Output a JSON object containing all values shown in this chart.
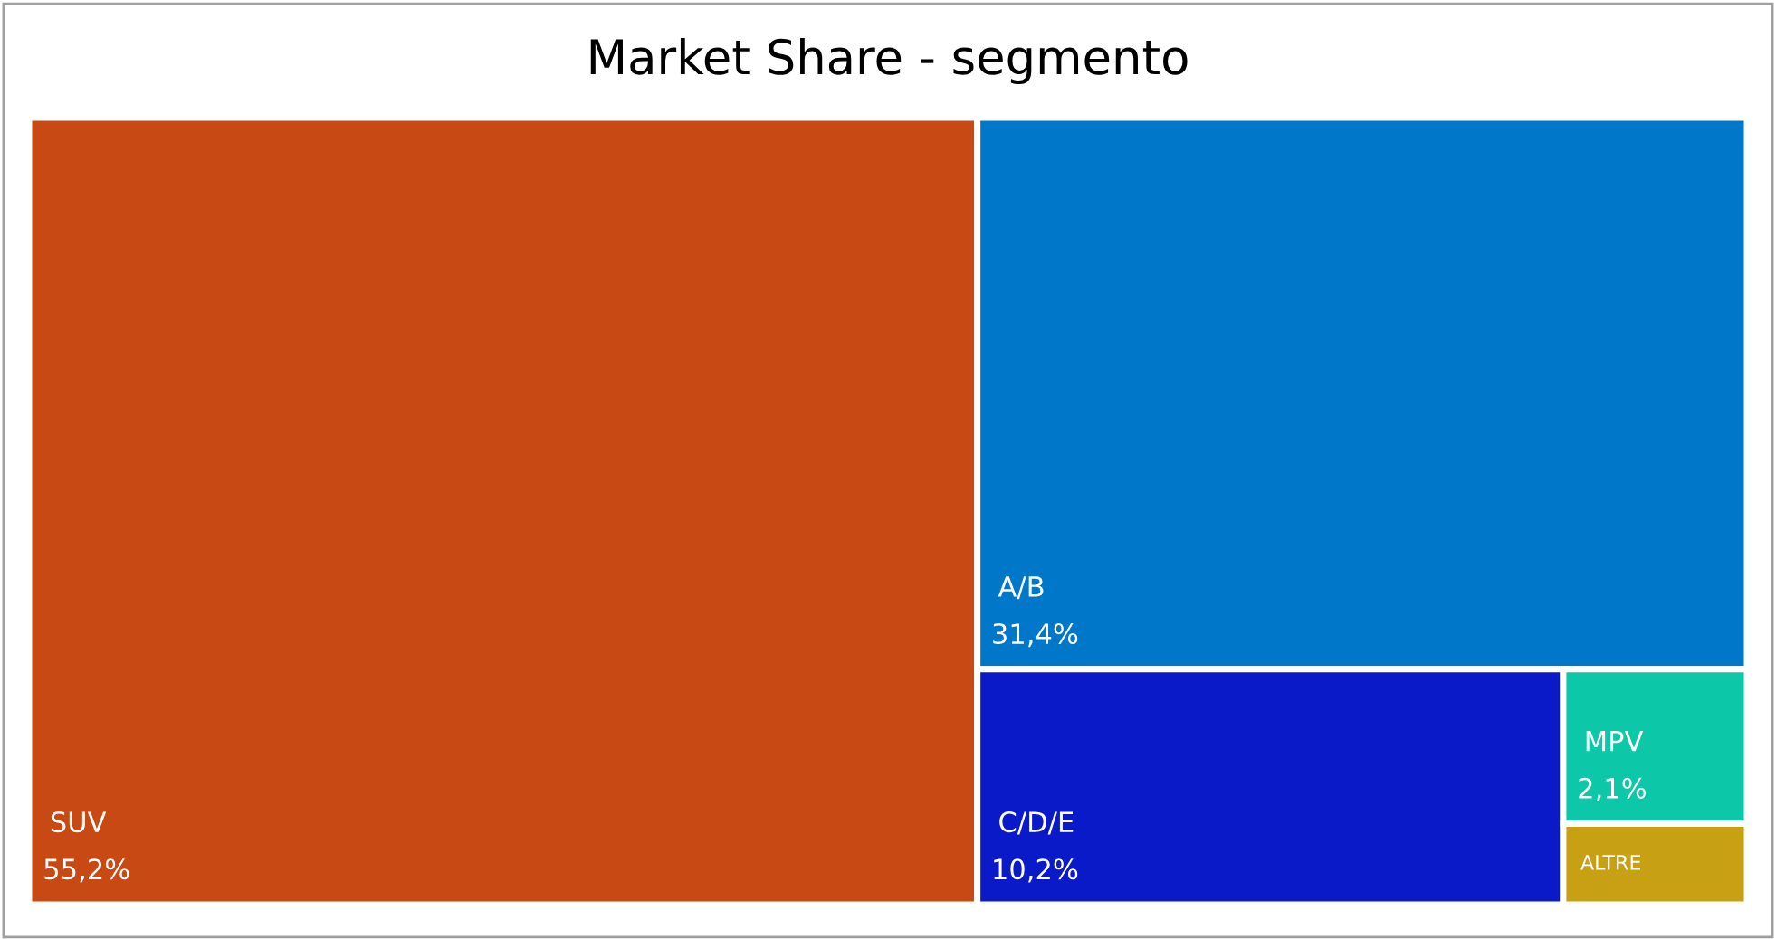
{
  "chart_data": {
    "type": "other",
    "title": "Market Share - segmento",
    "categories": [
      "SUV",
      "A/B",
      "C/D/E",
      "MPV",
      "ALTRE"
    ],
    "values": [
      55.2,
      31.4,
      10.2,
      2.1,
      null
    ],
    "value_labels": [
      "55,2%",
      "31,4%",
      "10,2%",
      "2,1%",
      null
    ],
    "colors": [
      "#c84914",
      "#0077c8",
      "#0a1ac8",
      "#0dc8a8",
      "#c8a014"
    ]
  }
}
